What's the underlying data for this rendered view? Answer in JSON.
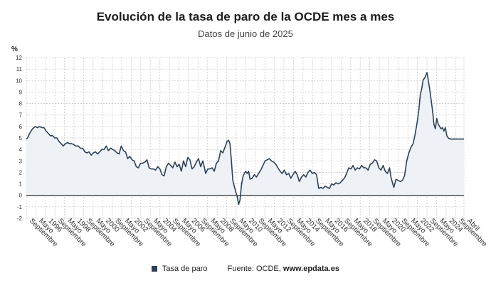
{
  "chart_data": {
    "type": "area",
    "title": "Evolución de la tasa de paro de la OCDE mes a mes",
    "subtitle": "Datos de junio de 2025",
    "unit": "%",
    "ylim": [
      -2,
      12
    ],
    "yticks": [
      -2,
      -1,
      0,
      1,
      2,
      3,
      4,
      5,
      6,
      7,
      8,
      9,
      10,
      11,
      12
    ],
    "xlim": [
      1994.667,
      2025.25
    ],
    "grid": true,
    "xticks": [
      {
        "x": 1994.667,
        "label": "Septiembre"
      },
      {
        "x": 1995.333,
        "label": "Mayo"
      },
      {
        "x": 1996.0,
        "label": "1996"
      },
      {
        "x": 1996.667,
        "label": "Septiembre"
      },
      {
        "x": 1997.333,
        "label": "Mayo"
      },
      {
        "x": 1998.0,
        "label": "1998"
      },
      {
        "x": 1998.667,
        "label": "Septiembre"
      },
      {
        "x": 1999.333,
        "label": "Mayo"
      },
      {
        "x": 2000.0,
        "label": "2000"
      },
      {
        "x": 2000.667,
        "label": "Septiembre"
      },
      {
        "x": 2001.333,
        "label": "Mayo"
      },
      {
        "x": 2002.0,
        "label": "2002"
      },
      {
        "x": 2002.667,
        "label": "Septiembre"
      },
      {
        "x": 2003.333,
        "label": "Mayo"
      },
      {
        "x": 2004.0,
        "label": "2004"
      },
      {
        "x": 2004.667,
        "label": "Septiembre"
      },
      {
        "x": 2005.333,
        "label": "Mayo"
      },
      {
        "x": 2006.0,
        "label": "2006"
      },
      {
        "x": 2006.667,
        "label": "Septiembre"
      },
      {
        "x": 2007.333,
        "label": "Mayo"
      },
      {
        "x": 2008.0,
        "label": "2008"
      },
      {
        "x": 2008.667,
        "label": "Septiembre"
      },
      {
        "x": 2009.333,
        "label": "Mayo"
      },
      {
        "x": 2010.0,
        "label": "2010"
      },
      {
        "x": 2010.667,
        "label": "Septiembre"
      },
      {
        "x": 2011.333,
        "label": "Mayo"
      },
      {
        "x": 2012.0,
        "label": "2012"
      },
      {
        "x": 2012.667,
        "label": "Septiembre"
      },
      {
        "x": 2013.333,
        "label": "Mayo"
      },
      {
        "x": 2014.0,
        "label": "2014"
      },
      {
        "x": 2014.667,
        "label": "Septiembre"
      },
      {
        "x": 2015.333,
        "label": "Mayo"
      },
      {
        "x": 2016.0,
        "label": "2016"
      },
      {
        "x": 2016.667,
        "label": "Septiembre"
      },
      {
        "x": 2017.333,
        "label": "Mayo"
      },
      {
        "x": 2018.0,
        "label": "2018"
      },
      {
        "x": 2018.667,
        "label": "Septiembre"
      },
      {
        "x": 2019.333,
        "label": "Mayo"
      },
      {
        "x": 2020.0,
        "label": "2020"
      },
      {
        "x": 2020.667,
        "label": "Septiembre"
      },
      {
        "x": 2021.333,
        "label": "Mayo"
      },
      {
        "x": 2022.0,
        "label": "2022"
      },
      {
        "x": 2022.667,
        "label": "Septiembre"
      },
      {
        "x": 2023.333,
        "label": "Mayo"
      },
      {
        "x": 2024.0,
        "label": "2024"
      },
      {
        "x": 2024.667,
        "label": "Septiembre"
      },
      {
        "x": 2025.25,
        "label": "Abril"
      }
    ],
    "series": [
      {
        "name": "Tasa de paro",
        "color": "#2e4157",
        "area_color": "#eef1f5",
        "points": [
          [
            1994.667,
            4.9
          ],
          [
            1994.75,
            5.0
          ],
          [
            1994.9,
            5.4
          ],
          [
            1995.1,
            5.8
          ],
          [
            1995.3,
            6.0
          ],
          [
            1995.45,
            5.9
          ],
          [
            1995.6,
            6.0
          ],
          [
            1995.75,
            5.9
          ],
          [
            1995.9,
            5.9
          ],
          [
            1996.05,
            5.6
          ],
          [
            1996.2,
            5.4
          ],
          [
            1996.35,
            5.2
          ],
          [
            1996.5,
            5.2
          ],
          [
            1996.65,
            5.0
          ],
          [
            1996.8,
            5.0
          ],
          [
            1996.95,
            4.7
          ],
          [
            1997.1,
            4.5
          ],
          [
            1997.25,
            4.3
          ],
          [
            1997.4,
            4.5
          ],
          [
            1997.55,
            4.6
          ],
          [
            1997.7,
            4.5
          ],
          [
            1997.85,
            4.5
          ],
          [
            1998.0,
            4.4
          ],
          [
            1998.15,
            4.3
          ],
          [
            1998.3,
            4.3
          ],
          [
            1998.45,
            4.1
          ],
          [
            1998.6,
            4.1
          ],
          [
            1998.75,
            3.8
          ],
          [
            1998.9,
            3.7
          ],
          [
            1999.05,
            3.8
          ],
          [
            1999.2,
            3.5
          ],
          [
            1999.35,
            3.7
          ],
          [
            1999.5,
            3.8
          ],
          [
            1999.65,
            3.6
          ],
          [
            1999.8,
            3.8
          ],
          [
            1999.95,
            4.0
          ],
          [
            2000.1,
            4.0
          ],
          [
            2000.25,
            4.3
          ],
          [
            2000.4,
            3.9
          ],
          [
            2000.55,
            4.1
          ],
          [
            2000.7,
            4.0
          ],
          [
            2000.85,
            3.9
          ],
          [
            2001.0,
            3.7
          ],
          [
            2001.15,
            3.6
          ],
          [
            2001.3,
            4.3
          ],
          [
            2001.45,
            3.9
          ],
          [
            2001.6,
            3.8
          ],
          [
            2001.75,
            3.2
          ],
          [
            2001.9,
            3.4
          ],
          [
            2002.05,
            3.1
          ],
          [
            2002.2,
            3.0
          ],
          [
            2002.35,
            2.5
          ],
          [
            2002.5,
            2.4
          ],
          [
            2002.65,
            2.8
          ],
          [
            2002.8,
            2.8
          ],
          [
            2002.95,
            2.9
          ],
          [
            2003.1,
            3.1
          ],
          [
            2003.25,
            2.4
          ],
          [
            2003.4,
            2.3
          ],
          [
            2003.55,
            2.3
          ],
          [
            2003.7,
            2.2
          ],
          [
            2003.85,
            2.5
          ],
          [
            2004.0,
            2.3
          ],
          [
            2004.15,
            1.8
          ],
          [
            2004.3,
            1.7
          ],
          [
            2004.45,
            2.5
          ],
          [
            2004.6,
            2.8
          ],
          [
            2004.75,
            2.6
          ],
          [
            2004.9,
            2.4
          ],
          [
            2005.05,
            2.9
          ],
          [
            2005.2,
            2.5
          ],
          [
            2005.35,
            2.7
          ],
          [
            2005.5,
            2.1
          ],
          [
            2005.65,
            3.0
          ],
          [
            2005.8,
            2.5
          ],
          [
            2005.95,
            3.3
          ],
          [
            2006.1,
            3.1
          ],
          [
            2006.25,
            2.3
          ],
          [
            2006.4,
            2.5
          ],
          [
            2006.55,
            2.9
          ],
          [
            2006.7,
            3.2
          ],
          [
            2006.85,
            2.5
          ],
          [
            2007.0,
            3.0
          ],
          [
            2007.1,
            2.5
          ],
          [
            2007.2,
            1.9
          ],
          [
            2007.35,
            2.3
          ],
          [
            2007.5,
            2.3
          ],
          [
            2007.65,
            2.4
          ],
          [
            2007.8,
            2.1
          ],
          [
            2007.95,
            2.8
          ],
          [
            2008.1,
            3.0
          ],
          [
            2008.25,
            3.9
          ],
          [
            2008.4,
            3.7
          ],
          [
            2008.55,
            4.2
          ],
          [
            2008.7,
            4.7
          ],
          [
            2008.8,
            4.8
          ],
          [
            2008.9,
            4.5
          ],
          [
            2009.0,
            3.0
          ],
          [
            2009.1,
            1.3
          ],
          [
            2009.2,
            0.8
          ],
          [
            2009.3,
            0.3
          ],
          [
            2009.4,
            -0.1
          ],
          [
            2009.5,
            -0.8
          ],
          [
            2009.6,
            -0.4
          ],
          [
            2009.7,
            0.9
          ],
          [
            2009.8,
            1.6
          ],
          [
            2009.9,
            1.9
          ],
          [
            2010.0,
            2.1
          ],
          [
            2010.1,
            1.9
          ],
          [
            2010.2,
            2.1
          ],
          [
            2010.3,
            1.4
          ],
          [
            2010.45,
            1.5
          ],
          [
            2010.6,
            1.8
          ],
          [
            2010.75,
            1.6
          ],
          [
            2010.9,
            1.9
          ],
          [
            2011.05,
            2.2
          ],
          [
            2011.2,
            2.6
          ],
          [
            2011.35,
            3.0
          ],
          [
            2011.5,
            3.1
          ],
          [
            2011.65,
            3.2
          ],
          [
            2011.8,
            3.0
          ],
          [
            2011.95,
            2.9
          ],
          [
            2012.1,
            2.7
          ],
          [
            2012.25,
            2.4
          ],
          [
            2012.4,
            2.1
          ],
          [
            2012.55,
            1.9
          ],
          [
            2012.7,
            2.2
          ],
          [
            2012.85,
            1.8
          ],
          [
            2013.0,
            1.9
          ],
          [
            2013.15,
            1.5
          ],
          [
            2013.3,
            1.8
          ],
          [
            2013.45,
            2.1
          ],
          [
            2013.6,
            1.8
          ],
          [
            2013.75,
            1.2
          ],
          [
            2013.9,
            1.6
          ],
          [
            2014.05,
            1.8
          ],
          [
            2014.2,
            1.6
          ],
          [
            2014.35,
            2.0
          ],
          [
            2014.5,
            2.2
          ],
          [
            2014.65,
            1.9
          ],
          [
            2014.8,
            2.0
          ],
          [
            2014.95,
            1.8
          ],
          [
            2015.1,
            0.6
          ],
          [
            2015.25,
            0.7
          ],
          [
            2015.4,
            0.6
          ],
          [
            2015.55,
            0.8
          ],
          [
            2015.7,
            0.7
          ],
          [
            2015.85,
            0.6
          ],
          [
            2016.0,
            1.0
          ],
          [
            2016.15,
            0.9
          ],
          [
            2016.3,
            1.1
          ],
          [
            2016.45,
            1.0
          ],
          [
            2016.6,
            1.1
          ],
          [
            2016.75,
            1.3
          ],
          [
            2016.9,
            1.5
          ],
          [
            2017.05,
            1.9
          ],
          [
            2017.2,
            2.4
          ],
          [
            2017.35,
            2.3
          ],
          [
            2017.5,
            2.6
          ],
          [
            2017.65,
            2.2
          ],
          [
            2017.8,
            2.4
          ],
          [
            2017.95,
            2.3
          ],
          [
            2018.1,
            2.6
          ],
          [
            2018.25,
            2.4
          ],
          [
            2018.4,
            2.4
          ],
          [
            2018.55,
            2.2
          ],
          [
            2018.7,
            2.7
          ],
          [
            2018.85,
            2.8
          ],
          [
            2019.0,
            3.1
          ],
          [
            2019.15,
            3.0
          ],
          [
            2019.3,
            2.4
          ],
          [
            2019.45,
            2.2
          ],
          [
            2019.6,
            2.6
          ],
          [
            2019.75,
            2.1
          ],
          [
            2019.9,
            1.9
          ],
          [
            2020.05,
            2.4
          ],
          [
            2020.15,
            1.6
          ],
          [
            2020.25,
            1.1
          ],
          [
            2020.35,
            0.7
          ],
          [
            2020.5,
            1.4
          ],
          [
            2020.65,
            1.3
          ],
          [
            2020.8,
            1.2
          ],
          [
            2020.95,
            1.3
          ],
          [
            2021.1,
            1.7
          ],
          [
            2021.25,
            3.0
          ],
          [
            2021.4,
            3.7
          ],
          [
            2021.55,
            4.2
          ],
          [
            2021.7,
            4.5
          ],
          [
            2021.85,
            5.4
          ],
          [
            2022.0,
            6.5
          ],
          [
            2022.1,
            7.5
          ],
          [
            2022.2,
            8.8
          ],
          [
            2022.3,
            9.3
          ],
          [
            2022.4,
            10.1
          ],
          [
            2022.5,
            10.2
          ],
          [
            2022.6,
            10.5
          ],
          [
            2022.67,
            10.7
          ],
          [
            2022.75,
            10.1
          ],
          [
            2022.85,
            9.3
          ],
          [
            2022.95,
            8.4
          ],
          [
            2023.05,
            7.4
          ],
          [
            2023.15,
            6.2
          ],
          [
            2023.25,
            5.8
          ],
          [
            2023.35,
            6.7
          ],
          [
            2023.45,
            6.2
          ],
          [
            2023.55,
            6.0
          ],
          [
            2023.65,
            5.8
          ],
          [
            2023.75,
            5.9
          ],
          [
            2023.85,
            5.6
          ],
          [
            2023.95,
            5.9
          ],
          [
            2024.05,
            5.2
          ],
          [
            2024.15,
            5.0
          ],
          [
            2024.3,
            4.9
          ],
          [
            2024.5,
            4.9
          ],
          [
            2024.7,
            4.9
          ],
          [
            2024.9,
            4.9
          ],
          [
            2025.1,
            4.9
          ],
          [
            2025.25,
            4.9
          ]
        ]
      }
    ],
    "source_label": "Fuente: OCDE, ",
    "source_site": "www.epdata.es"
  }
}
